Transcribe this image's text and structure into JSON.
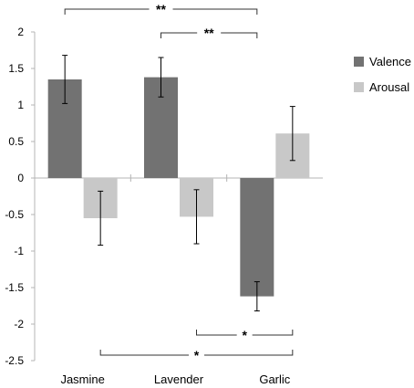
{
  "chart_data": {
    "type": "bar",
    "title": "",
    "xlabel": "",
    "ylabel": "",
    "ylim": [
      -2.5,
      2
    ],
    "yticks": [
      "2",
      "1.5",
      "1",
      "0.5",
      "0",
      "-0.5",
      "-1",
      "-1.5",
      "-2",
      "-2.5"
    ],
    "categories": [
      "Jasmine",
      "Lavender",
      "Garlic"
    ],
    "series": [
      {
        "name": "Valence",
        "color": "#727272",
        "values": [
          1.35,
          1.38,
          -1.62
        ],
        "errors": [
          0.33,
          0.27,
          0.2
        ]
      },
      {
        "name": "Arousal",
        "color": "#c8c8c8",
        "values": [
          -0.55,
          -0.53,
          0.61
        ],
        "errors": [
          0.37,
          0.37,
          0.37
        ]
      }
    ],
    "legend": {
      "position": "right"
    },
    "significance": [
      {
        "label": "**",
        "from": "Jasmine Valence",
        "to": "Garlic Valence",
        "placement": "top"
      },
      {
        "label": "**",
        "from": "Lavender Valence",
        "to": "Garlic Valence",
        "placement": "top"
      },
      {
        "label": "*",
        "from": "Lavender Arousal",
        "to": "Garlic Arousal",
        "placement": "bottom"
      },
      {
        "label": "*",
        "from": "Jasmine Arousal",
        "to": "Garlic Arousal",
        "placement": "bottom"
      }
    ]
  }
}
